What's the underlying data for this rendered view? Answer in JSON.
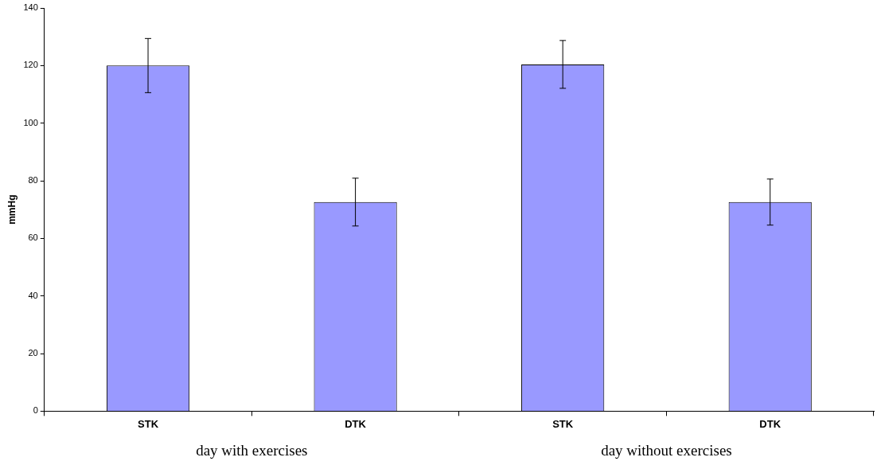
{
  "chart_data": {
    "type": "bar",
    "ylabel": "mmHg",
    "categories": [
      "STK",
      "DTK",
      "STK",
      "DTK"
    ],
    "values": [
      120,
      72.6,
      120.4,
      72.6
    ],
    "errors": [
      9.4,
      8.3,
      8.3,
      8
    ],
    "color": "#9999ff",
    "ylim": [
      0,
      140
    ],
    "yticks": [
      0,
      20,
      40,
      60,
      80,
      100,
      120,
      140
    ],
    "grid": false,
    "legend": false,
    "annotations": [
      "day with exercises",
      "day without exercises"
    ]
  }
}
